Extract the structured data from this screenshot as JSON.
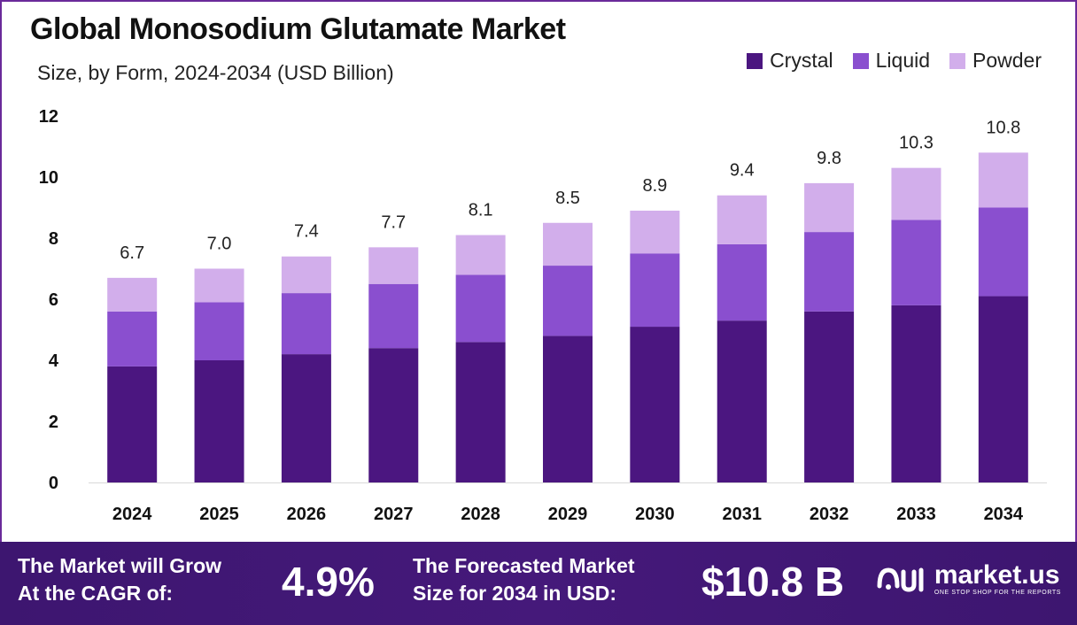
{
  "header": {
    "title": "Global Monosodium Glutamate Market",
    "subtitle": "Size, by Form, 2024-2034 (USD Billion)"
  },
  "colors": {
    "crystal": "#4b1680",
    "liquid": "#8a4fcf",
    "powder": "#d2aeeb",
    "footer_bg": "#45197a"
  },
  "chart_data": {
    "type": "bar",
    "stacked": true,
    "categories": [
      "2024",
      "2025",
      "2026",
      "2027",
      "2028",
      "2029",
      "2030",
      "2031",
      "2032",
      "2033",
      "2034"
    ],
    "series": [
      {
        "name": "Crystal",
        "values": [
          3.8,
          4.0,
          4.2,
          4.4,
          4.6,
          4.8,
          5.1,
          5.3,
          5.6,
          5.8,
          6.1
        ]
      },
      {
        "name": "Liquid",
        "values": [
          1.8,
          1.9,
          2.0,
          2.1,
          2.2,
          2.3,
          2.4,
          2.5,
          2.6,
          2.8,
          2.9
        ]
      },
      {
        "name": "Powder",
        "values": [
          1.1,
          1.1,
          1.2,
          1.2,
          1.3,
          1.4,
          1.4,
          1.6,
          1.6,
          1.7,
          1.8
        ]
      }
    ],
    "totals": [
      "6.7",
      "7.0",
      "7.4",
      "7.7",
      "8.1",
      "8.5",
      "8.9",
      "9.4",
      "9.8",
      "10.3",
      "10.8"
    ],
    "yticks": [
      "0",
      "2",
      "4",
      "6",
      "8",
      "10",
      "12"
    ],
    "ylim": [
      0,
      12
    ],
    "legend_position": "top-right",
    "grid": false
  },
  "footer": {
    "cagr_label_line1": "The Market will Grow",
    "cagr_label_line2": "At the CAGR of:",
    "cagr_value": "4.9%",
    "forecast_label_line1": "The Forecasted Market",
    "forecast_label_line2": "Size for 2034 in USD:",
    "forecast_value": "$10.8 B",
    "brand_name": "market.us",
    "brand_tagline": "ONE STOP SHOP FOR THE REPORTS"
  }
}
